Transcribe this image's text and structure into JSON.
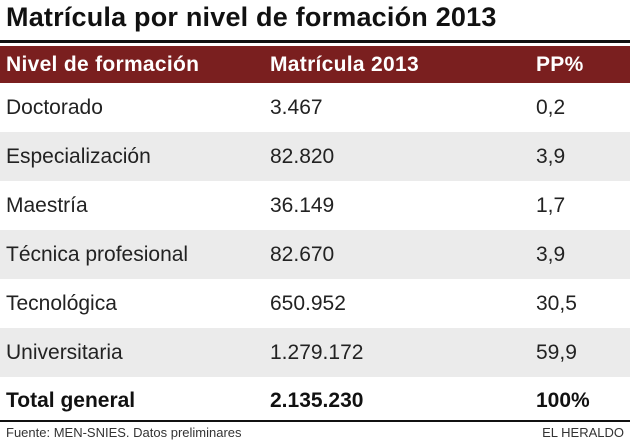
{
  "title": "Matrícula por nivel de formación 2013",
  "chart_data": {
    "type": "table",
    "title": "Matrícula por nivel de formación 2013",
    "columns": [
      "Nivel de formación",
      "Matrícula 2013",
      "PP%"
    ],
    "rows": [
      {
        "nivel": "Doctorado",
        "matricula": "3.467",
        "pp": "0,2"
      },
      {
        "nivel": "Especialización",
        "matricula": "82.820",
        "pp": "3,9"
      },
      {
        "nivel": "Maestría",
        "matricula": "36.149",
        "pp": "1,7"
      },
      {
        "nivel": "Técnica profesional",
        "matricula": "82.670",
        "pp": "3,9"
      },
      {
        "nivel": "Tecnológica",
        "matricula": "650.952",
        "pp": "30,5"
      },
      {
        "nivel": "Universitaria",
        "matricula": "1.279.172",
        "pp": "59,9"
      }
    ],
    "total": {
      "nivel": "Total general",
      "matricula": "2.135.230",
      "pp": "100%"
    }
  },
  "colors": {
    "header_bg": "#7a1f1f",
    "stripe_bg": "#ebebeb"
  },
  "footer": {
    "source": "Fuente: MEN-SNIES. Datos preliminares",
    "credit": "EL HERALDO"
  }
}
